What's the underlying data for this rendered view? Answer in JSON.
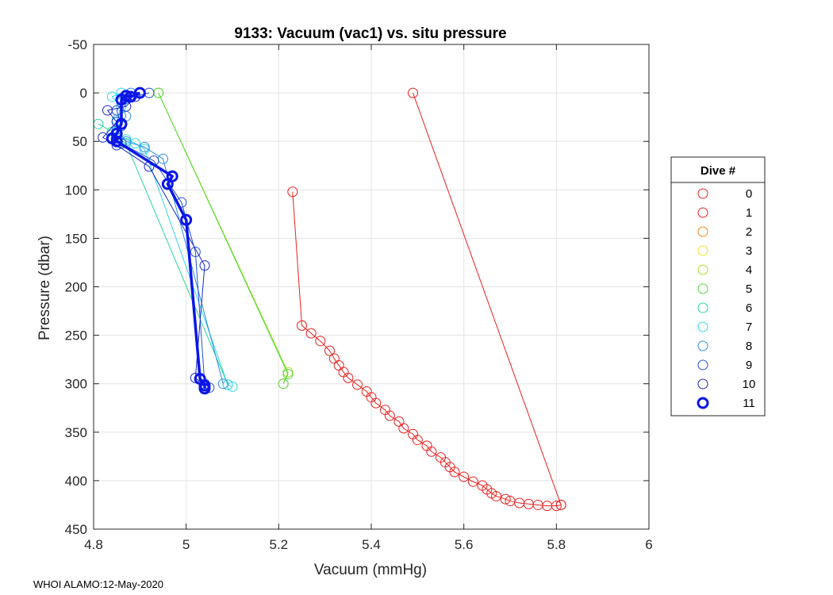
{
  "chart_data": {
    "type": "line",
    "title": "9133: Vacuum (vac1) vs. situ pressure",
    "xlabel": "Vacuum (mmHg)",
    "ylabel": "Pressure (dbar)",
    "xlim": [
      4.8,
      6
    ],
    "ylim": [
      -50,
      450
    ],
    "y_reversed": true,
    "grid": true,
    "xticks": [
      "4.8",
      "5",
      "5.2",
      "5.4",
      "5.6",
      "5.8",
      "6"
    ],
    "yticks": [
      "-50",
      "0",
      "50",
      "100",
      "150",
      "200",
      "250",
      "300",
      "350",
      "400",
      "450"
    ],
    "legend_title": "Dive #",
    "legend_position": "right",
    "series": [
      {
        "name": "0",
        "color": "#e8201e",
        "points": [
          [
            5.49,
            0
          ],
          [
            5.81,
            425
          ]
        ]
      },
      {
        "name": "1",
        "color": "#e8201e",
        "points": [
          [
            5.23,
            102
          ],
          [
            5.25,
            240
          ],
          [
            5.27,
            248
          ],
          [
            5.29,
            256
          ],
          [
            5.31,
            266
          ],
          [
            5.32,
            274
          ],
          [
            5.33,
            281
          ],
          [
            5.34,
            288
          ],
          [
            5.35,
            294
          ],
          [
            5.37,
            301
          ],
          [
            5.39,
            308
          ],
          [
            5.4,
            314
          ],
          [
            5.41,
            320
          ],
          [
            5.43,
            327
          ],
          [
            5.44,
            333
          ],
          [
            5.46,
            339
          ],
          [
            5.47,
            346
          ],
          [
            5.49,
            352
          ],
          [
            5.5,
            358
          ],
          [
            5.52,
            364
          ],
          [
            5.53,
            370
          ],
          [
            5.55,
            376
          ],
          [
            5.56,
            381
          ],
          [
            5.57,
            386
          ],
          [
            5.58,
            391
          ],
          [
            5.6,
            396
          ],
          [
            5.62,
            401
          ],
          [
            5.64,
            405
          ],
          [
            5.65,
            409
          ],
          [
            5.66,
            413
          ],
          [
            5.67,
            416
          ],
          [
            5.69,
            419
          ],
          [
            5.7,
            421
          ],
          [
            5.72,
            423
          ],
          [
            5.74,
            424
          ],
          [
            5.76,
            425
          ],
          [
            5.78,
            426
          ],
          [
            5.8,
            426
          ],
          [
            5.81,
            425
          ]
        ]
      },
      {
        "name": "2",
        "color": "#f08a14",
        "points": []
      },
      {
        "name": "3",
        "color": "#f0e020",
        "points": []
      },
      {
        "name": "4",
        "color": "#a6e024",
        "points": [
          [
            4.94,
            0
          ],
          [
            5.22,
            288
          ],
          [
            5.21,
            300
          ]
        ]
      },
      {
        "name": "5",
        "color": "#50d838",
        "points": [
          [
            4.94,
            0
          ],
          [
            5.22,
            290
          ],
          [
            5.21,
            300
          ]
        ]
      },
      {
        "name": "6",
        "color": "#28d898",
        "points": [
          [
            4.81,
            32
          ],
          [
            4.84,
            40
          ],
          [
            4.85,
            46
          ],
          [
            4.87,
            52
          ],
          [
            5.09,
            301
          ]
        ]
      },
      {
        "name": "7",
        "color": "#30d8e8",
        "points": [
          [
            4.86,
            0
          ],
          [
            4.84,
            4
          ],
          [
            4.86,
            14
          ],
          [
            4.85,
            28
          ],
          [
            4.85,
            40
          ],
          [
            4.87,
            48
          ],
          [
            4.89,
            52
          ],
          [
            4.91,
            58
          ],
          [
            5.09,
            301
          ],
          [
            5.1,
            303
          ]
        ]
      },
      {
        "name": "8",
        "color": "#2a8ce8",
        "points": [
          [
            4.88,
            0
          ],
          [
            4.86,
            10
          ],
          [
            4.87,
            24
          ],
          [
            4.85,
            38
          ],
          [
            4.87,
            50
          ],
          [
            4.91,
            56
          ],
          [
            4.95,
            68
          ],
          [
            5.08,
            300
          ]
        ]
      },
      {
        "name": "9",
        "color": "#2050d8",
        "points": [
          [
            4.92,
            0
          ],
          [
            4.87,
            6
          ],
          [
            4.85,
            18
          ],
          [
            4.86,
            34
          ],
          [
            4.84,
            46
          ],
          [
            4.86,
            52
          ],
          [
            4.93,
            70
          ],
          [
            4.99,
            113
          ],
          [
            5.02,
            164
          ],
          [
            5.04,
            300
          ],
          [
            5.05,
            304
          ]
        ]
      },
      {
        "name": "10",
        "color": "#1828c8",
        "points": [
          [
            4.89,
            4
          ],
          [
            4.87,
            14
          ],
          [
            4.83,
            18
          ],
          [
            4.85,
            30
          ],
          [
            4.82,
            46
          ],
          [
            4.85,
            54
          ],
          [
            4.92,
            76
          ],
          [
            5.04,
            178
          ],
          [
            5.02,
            294
          ],
          [
            5.04,
            302
          ]
        ]
      },
      {
        "name": "11",
        "color": "#0b15e8",
        "bold": true,
        "points": [
          [
            4.9,
            0
          ],
          [
            4.88,
            4
          ],
          [
            4.87,
            3
          ],
          [
            4.86,
            7
          ],
          [
            4.86,
            32
          ],
          [
            4.85,
            42
          ],
          [
            4.84,
            47
          ],
          [
            4.85,
            50
          ],
          [
            4.97,
            86
          ],
          [
            4.96,
            94
          ],
          [
            5.0,
            131
          ],
          [
            5.03,
            295
          ],
          [
            5.04,
            302
          ],
          [
            5.04,
            305
          ]
        ]
      }
    ]
  },
  "footer": "WHOI ALAMO:12-May-2020"
}
